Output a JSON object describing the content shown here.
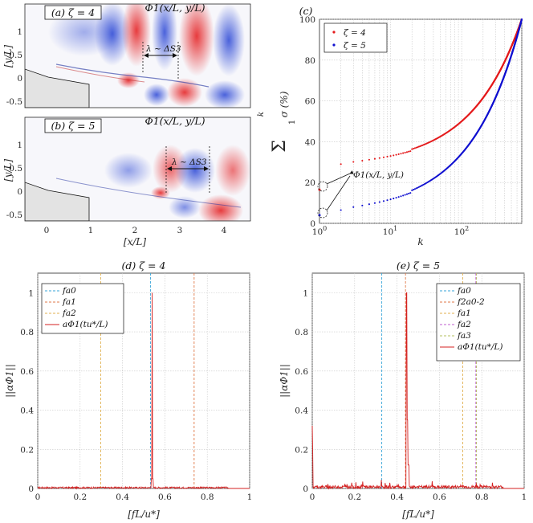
{
  "panels": {
    "a": {
      "tag": "(a) ζ = 4",
      "title": "Φ1(x/L, y/L)",
      "annotation": "λ ~ ΔS3",
      "ylabel": "[y/L]",
      "yticks": [
        "1",
        "0.5",
        "0",
        "-0.5"
      ]
    },
    "b": {
      "tag": "(b) ζ = 5",
      "title": "Φ1(x/L, y/L)",
      "annotation": "λ ~ ΔS3",
      "ylabel": "[y/L]",
      "yticks": [
        "1",
        "0.5",
        "0",
        "-0.5"
      ],
      "xticks": [
        "0",
        "1",
        "2",
        "3",
        "4"
      ],
      "xlabel": "[x/L]"
    }
  },
  "colors": {
    "red": "#e41a1c",
    "blue": "#1010d0",
    "cyan": "#3aa5d8",
    "orange": "#e07a4a",
    "yellow": "#e0b050",
    "magenta": "#c060d0",
    "green": "#b5c060",
    "olive": "#c8a040"
  },
  "chart_data": [
    {
      "id": "c",
      "type": "scatter",
      "tag": "(c)",
      "xscale": "log",
      "xlim": [
        1,
        700
      ],
      "ylim": [
        0,
        100
      ],
      "xlabel": "k",
      "ylabel": "Σ σ (%)",
      "ylabel_sum_upper": "k",
      "ylabel_sum_lower": "1",
      "xticks": [
        "10^0",
        "10^1",
        "10^2"
      ],
      "yticks": [
        "0",
        "20",
        "40",
        "60",
        "80",
        "100"
      ],
      "grid": true,
      "legend_position": "top-left",
      "annotation": "Φ1(x/L, y/L)",
      "series": [
        {
          "name": "ζ = 4",
          "color": "#e41a1c",
          "k1_value": 16.5,
          "k2_value": 29.0,
          "k700_value": 100
        },
        {
          "name": "ζ = 5",
          "color": "#1010d0",
          "k1_value": 4.0,
          "k2_value": 6.5,
          "k700_value": 100
        }
      ]
    },
    {
      "id": "d",
      "type": "line",
      "title": "(d) ζ = 4",
      "xlim": [
        0,
        1
      ],
      "ylim": [
        0,
        1.1
      ],
      "xlabel": "[fL/u*]",
      "ylabel": "||αΦ1||",
      "xticks": [
        "0",
        "0.2",
        "0.4",
        "0.6",
        "0.8",
        "1"
      ],
      "yticks": [
        "0",
        "0.2",
        "0.4",
        "0.6",
        "0.8",
        "1"
      ],
      "legend_position": "top-left",
      "vlines": [
        {
          "name": "fa0",
          "x": 0.532,
          "color": "#3aa5d8"
        },
        {
          "name": "fa1",
          "x": 0.738,
          "color": "#e07a4a"
        },
        {
          "name": "fa2",
          "x": 0.297,
          "color": "#e0b050"
        }
      ],
      "series": [
        {
          "name": "aΦ1(tu*/L)",
          "color": "#d42020",
          "peak_x": 0.54,
          "peak_y": 1.0
        }
      ]
    },
    {
      "id": "e",
      "type": "line",
      "title": "(e) ζ = 5",
      "xlim": [
        0,
        1
      ],
      "ylim": [
        0,
        1.1
      ],
      "xlabel": "[fL/u*]",
      "ylabel": "||αΦ1||",
      "xticks": [
        "0",
        "0.2",
        "0.4",
        "0.6",
        "0.8",
        "1"
      ],
      "yticks": [
        "0",
        "0.2",
        "0.4",
        "0.6",
        "0.8",
        "1"
      ],
      "legend_position": "top-right",
      "vlines": [
        {
          "name": "fa0",
          "x": 0.328,
          "color": "#3aa5d8"
        },
        {
          "name": "f2a0-2",
          "x": 0.44,
          "color": "#e07a4a"
        },
        {
          "name": "fa1",
          "x": 0.71,
          "color": "#e0b050"
        },
        {
          "name": "fa2",
          "x": 0.772,
          "color": "#c060d0"
        },
        {
          "name": "fa3",
          "x": 0.775,
          "color": "#b5c060"
        }
      ],
      "series": [
        {
          "name": "aΦ1(tu*/L)",
          "color": "#d42020",
          "peak_x": 0.445,
          "peak_y": 1.0
        }
      ]
    }
  ]
}
